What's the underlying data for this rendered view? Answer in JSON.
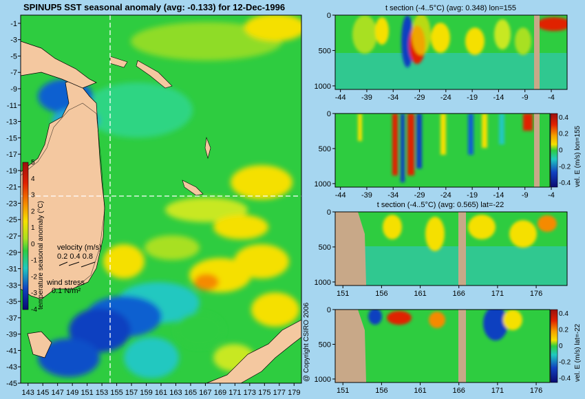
{
  "chart_data": [
    {
      "type": "heatmap",
      "title": "SPINUP5 SST seasonal anomaly (avg: -0.133) for 12-Dec-1996",
      "x_ticks": [
        "143",
        "145",
        "147",
        "149",
        "151",
        "153",
        "155",
        "157",
        "159",
        "161",
        "163",
        "165",
        "167",
        "169",
        "171",
        "173",
        "175",
        "177",
        "179"
      ],
      "y_ticks": [
        "-1",
        "-3",
        "-5",
        "-7",
        "-9",
        "-11",
        "-13",
        "-15",
        "-17",
        "-19",
        "-21",
        "-23",
        "-25",
        "-27",
        "-29",
        "-31",
        "-33",
        "-35",
        "-37",
        "-39",
        "-41",
        "-43",
        "-45"
      ],
      "xlim": [
        142,
        180
      ],
      "ylim": [
        -45,
        0
      ],
      "colorbar": {
        "label": "temperature seasonal anomaly (°C)",
        "ticks": [
          "5",
          "4",
          "3",
          "2",
          "1",
          "0",
          "-1",
          "-2",
          "-3",
          "-4"
        ],
        "range": [
          -4,
          5
        ]
      },
      "section_lines": {
        "lon": 155,
        "lat": -22
      },
      "legend": {
        "velocity_label": "velocity (m/s)",
        "velocity_values": "0.2 0.4 0.8",
        "wind_label": "wind stress",
        "wind_value": "0.1 N/m²"
      }
    },
    {
      "type": "heatmap",
      "title": "t section (-4..5°C) (avg: 0.348) lon=155",
      "x_ticks": [
        "-44",
        "-39",
        "-34",
        "-29",
        "-24",
        "-19",
        "-14",
        "-9",
        "-4"
      ],
      "y_ticks": [
        "0",
        "500",
        "1000"
      ],
      "xlim": [
        -45,
        -1
      ],
      "ylim": [
        1050,
        0
      ]
    },
    {
      "type": "heatmap",
      "title": "",
      "x_ticks": [
        "-44",
        "-39",
        "-34",
        "-29",
        "-24",
        "-19",
        "-14",
        "-9",
        "-4"
      ],
      "y_ticks": [
        "0",
        "500",
        "1000"
      ],
      "xlim": [
        -45,
        -1
      ],
      "ylim": [
        1050,
        0
      ],
      "colorbar": {
        "label": "vel. E (m/s) lon=155",
        "ticks": [
          "0.4",
          "0.2",
          "0",
          "-0.2",
          "-0.4"
        ],
        "range": [
          -0.45,
          0.45
        ]
      }
    },
    {
      "type": "heatmap",
      "title": "t section (-4..5°C) (avg: 0.565) lat=-22",
      "x_ticks": [
        "151",
        "156",
        "161",
        "166",
        "171",
        "176"
      ],
      "y_ticks": [
        "0",
        "500",
        "1000"
      ],
      "xlim": [
        150,
        180
      ],
      "ylim": [
        1050,
        0
      ]
    },
    {
      "type": "heatmap",
      "title": "",
      "x_ticks": [
        "151",
        "156",
        "161",
        "166",
        "171",
        "176"
      ],
      "y_ticks": [
        "0",
        "500",
        "1000"
      ],
      "xlim": [
        150,
        180
      ],
      "ylim": [
        1050,
        0
      ],
      "colorbar": {
        "label": "vel. E (m/s) lat=-22",
        "ticks": [
          "0.4",
          "0.2",
          "0",
          "-0.2",
          "-0.4"
        ],
        "range": [
          -0.45,
          0.45
        ]
      }
    }
  ],
  "copyright": "@ Copyright CSIRO 2006",
  "colors": {
    "background": "#a6d6f0",
    "land": "#f4c8a0",
    "section_land": "#c8a888",
    "ocean_base": "#2ecc40",
    "warm": "#f5e000",
    "hot": "#e02000",
    "cold": "#1040c0",
    "cyan": "#20c8c0"
  }
}
